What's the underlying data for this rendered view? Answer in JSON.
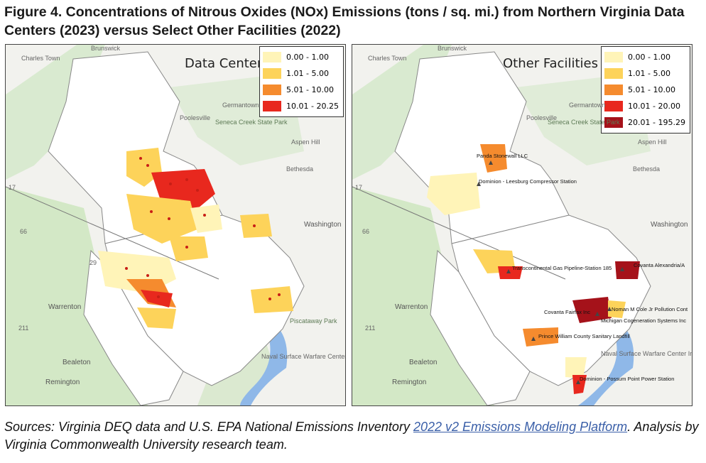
{
  "figure": {
    "title": "Figure 4. Concentrations of Nitrous Oxides (NOx) Emissions (tons / sq. mi.) from Northern Virginia Data Centers (2023) versus Select Other Facilities (2022)"
  },
  "left_map": {
    "title": "Data Centers",
    "legend": [
      {
        "range": "0.00 - 1.00",
        "color": "#fff4b8"
      },
      {
        "range": "1.01 - 5.00",
        "color": "#fdd35a"
      },
      {
        "range": "5.01 - 10.00",
        "color": "#f58b2e"
      },
      {
        "range": "10.01 - 20.25",
        "color": "#e8281e"
      }
    ],
    "places": {
      "charles_town": "Charles Town",
      "brunswick": "Brunswick",
      "germantown": "Germantown",
      "poolesville": "Poolesville",
      "seneca_creek": "Seneca Creek State Park",
      "aspen_hill": "Aspen Hill",
      "bethesda": "Bethesda",
      "washington": "Washington",
      "warrenton": "Warrenton",
      "piscataway": "Piscataway Park",
      "naval_warfare": "Naval Surface Warfare Center Indian Head",
      "bealeton": "Bealeton",
      "remington": "Remington",
      "route_17": "17",
      "route_66": "66",
      "route_29": "29",
      "route_211": "211"
    }
  },
  "right_map": {
    "title": "Other Facilities",
    "legend": [
      {
        "range": "0.00 - 1.00",
        "color": "#fff4b8"
      },
      {
        "range": "1.01 - 5.00",
        "color": "#fdd35a"
      },
      {
        "range": "5.01 - 10.00",
        "color": "#f58b2e"
      },
      {
        "range": "10.01 - 20.00",
        "color": "#e8281e"
      },
      {
        "range": "20.01 - 195.29",
        "color": "#a5121a"
      }
    ],
    "places": {
      "charles_town": "Charles Town",
      "brunswick": "Brunswick",
      "germantown": "Germantown",
      "poolesville": "Poolesville",
      "seneca_creek": "Seneca Creek State Park",
      "aspen_hill": "Aspen Hill",
      "bethesda": "Bethesda",
      "washington": "Washington",
      "warrenton": "Warrenton",
      "naval_warfare": "Naval Surface Warfare Center Indian Head",
      "bealeton": "Bealeton",
      "remington": "Remington",
      "route_17": "17",
      "route_66": "66",
      "route_211": "211"
    },
    "facilities": {
      "panda": "Panda Stonewall LLC",
      "dominion_leesburg": "Dominion - Leesburg Compressor Station",
      "transco": "Transcontinental Gas Pipeline-Station 185",
      "covanta_alexandria": "Covanta Alexandria/A",
      "noman_cole": "Noman M Cole Jr Pollution Cont",
      "covanta_fairfax": "Covanta Fairfax Inc",
      "michigan_cogen": "Michigan Cogeneration Systems Inc",
      "prince_william": "Prince William County Sanitary Landfill",
      "possum_point": "Dominion - Possum Point Power Station"
    }
  },
  "sources": {
    "prefix": "Sources: Virginia DEQ data and U.S. EPA National Emissions Inventory ",
    "link_text": "2022 v2 Emissions Modeling Platform",
    "suffix": ". Analysis by Virginia Commonwealth University research team."
  },
  "colors": {
    "land": "#f2f2ee",
    "green": "#d9ead0",
    "water": "#8fb8e8",
    "county": "#ffffff"
  }
}
